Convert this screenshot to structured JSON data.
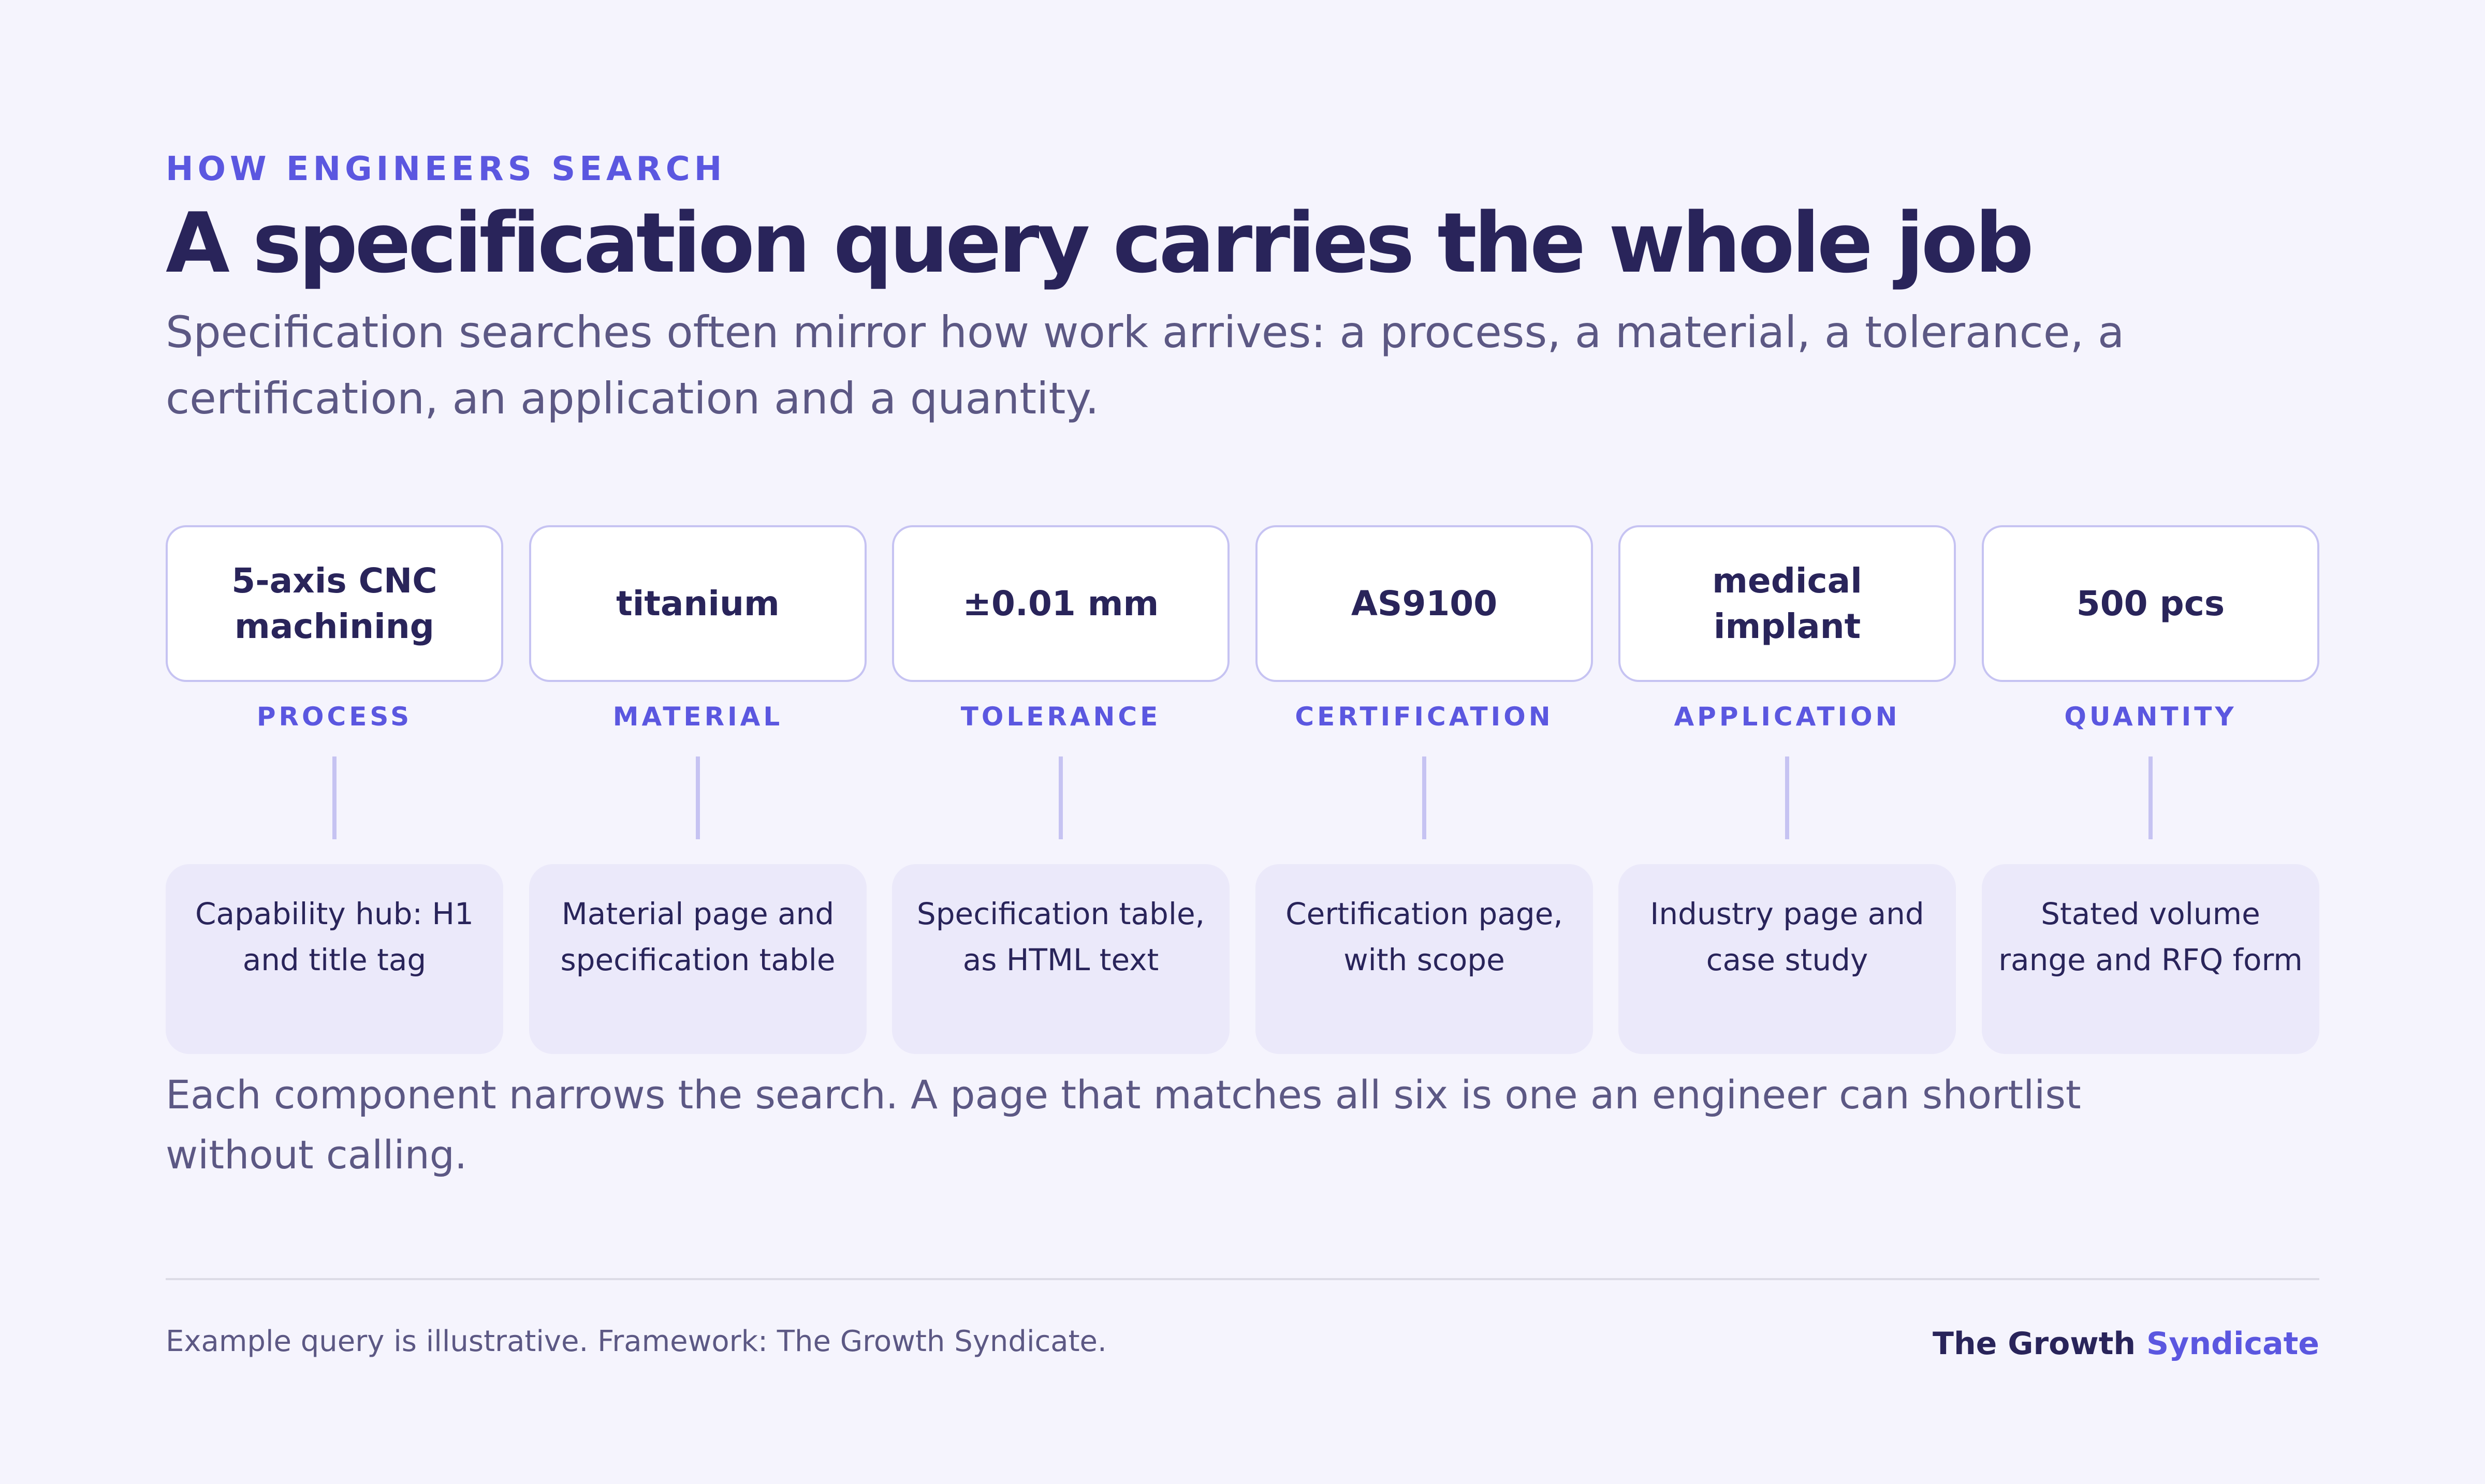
{
  "header": {
    "eyebrow": "HOW ENGINEERS SEARCH",
    "title": "A specification query carries the whole job",
    "subtitle": "Specification searches often mirror how work arrives: a process, a material, a tolerance, a certification, an application and a quantity."
  },
  "components": [
    {
      "term": "5-axis CNC machining",
      "category": "PROCESS",
      "target": "Capability hub: H1 and title tag"
    },
    {
      "term": "titanium",
      "category": "MATERIAL",
      "target": "Material page and specification table"
    },
    {
      "term": "±0.01 mm",
      "category": "TOLERANCE",
      "target": "Specification table, as HTML text"
    },
    {
      "term": "AS9100",
      "category": "CERTIFICATION",
      "target": "Certification page, with scope"
    },
    {
      "term": "medical implant",
      "category": "APPLICATION",
      "target": "Industry page and case study"
    },
    {
      "term": "500 pcs",
      "category": "QUANTITY",
      "target": "Stated volume range and RFQ form"
    }
  ],
  "note": "Each component narrows the search. A page that matches all six is one an engineer can shortlist without calling.",
  "footer": {
    "source": "Example query is illustrative. Framework: The Growth Syndicate.",
    "brand_primary": "The Growth",
    "brand_accent": "Syndicate"
  },
  "colors": {
    "background": "#f5f4fd",
    "accent": "#5b57e0",
    "text": "#29245a",
    "chip_border": "#c6c3f2",
    "target_fill": "#ebe9fa"
  }
}
